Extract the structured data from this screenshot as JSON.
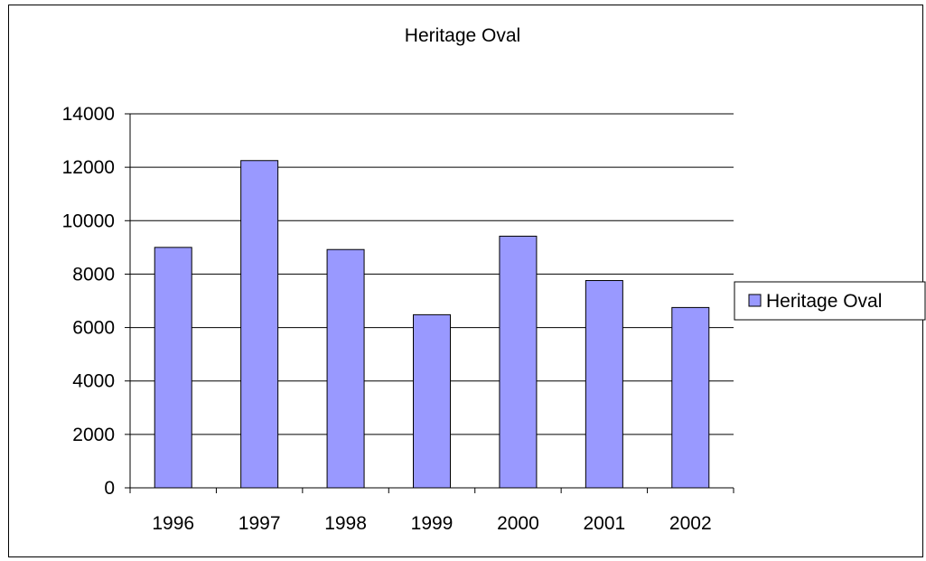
{
  "chart_data": {
    "type": "bar",
    "title": "Heritage Oval",
    "categories": [
      "1996",
      "1997",
      "1998",
      "1999",
      "2000",
      "2001",
      "2002"
    ],
    "series": [
      {
        "name": "Heritage Oval",
        "values": [
          9000,
          12250,
          8920,
          6480,
          9420,
          7760,
          6750
        ]
      }
    ],
    "ylim": [
      0,
      14000
    ],
    "yticks": [
      0,
      2000,
      4000,
      6000,
      8000,
      10000,
      12000,
      14000
    ],
    "grid": true,
    "legend": "right",
    "colors": {
      "bar": "#9999ff",
      "bar_stroke": "#000000",
      "grid": "#000000"
    }
  }
}
